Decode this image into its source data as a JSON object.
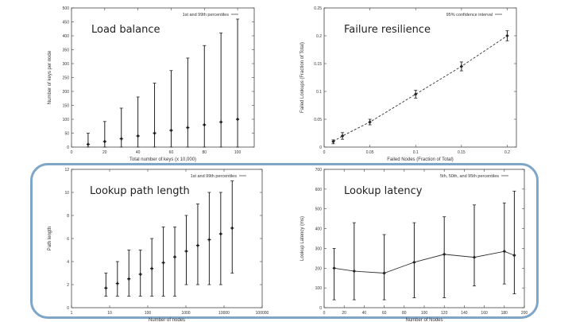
{
  "chart_data": [
    {
      "type": "scatter",
      "title": "Load balance",
      "xlabel": "Total number of keys (x 10,000)",
      "ylabel": "Number of keys per node",
      "legend": "1st and 99th percentiles",
      "legend_position": "top-right",
      "x_ticks": [
        "0",
        "20",
        "40",
        "60",
        "80",
        "100"
      ],
      "y_ticks": [
        "0",
        "50",
        "100",
        "150",
        "200",
        "250",
        "300",
        "350",
        "400",
        "450",
        "500"
      ],
      "xlim": [
        0,
        110
      ],
      "ylim": [
        0,
        500
      ],
      "series": [
        {
          "name": "1st and 99th percentiles",
          "points": [
            {
              "x": 10,
              "y": 10,
              "low": 0,
              "high": 50
            },
            {
              "x": 20,
              "y": 20,
              "low": 0,
              "high": 92
            },
            {
              "x": 30,
              "y": 30,
              "low": 0,
              "high": 140
            },
            {
              "x": 40,
              "y": 40,
              "low": 0,
              "high": 180
            },
            {
              "x": 50,
              "y": 50,
              "low": 0,
              "high": 230
            },
            {
              "x": 60,
              "y": 60,
              "low": 0,
              "high": 275
            },
            {
              "x": 70,
              "y": 70,
              "low": 0,
              "high": 320
            },
            {
              "x": 80,
              "y": 80,
              "low": 0,
              "high": 365
            },
            {
              "x": 90,
              "y": 90,
              "low": 0,
              "high": 410
            },
            {
              "x": 100,
              "y": 100,
              "low": 0,
              "high": 460
            }
          ]
        }
      ]
    },
    {
      "type": "line",
      "title": "Failure resilience",
      "xlabel": "Failed Nodes (Fraction of Total)",
      "ylabel": "Failed Lookups (Fraction of Total)",
      "legend": "95% confidence interval",
      "legend_position": "top-right",
      "x_ticks": [
        "0",
        "0.05",
        "0.1",
        "0.15",
        "0.2"
      ],
      "y_ticks": [
        "0",
        "0.05",
        "0.1",
        "0.15",
        "0.2",
        "0.25"
      ],
      "xlim": [
        0,
        0.21
      ],
      "ylim": [
        0,
        0.25
      ],
      "series": [
        {
          "name": "95% confidence interval",
          "points": [
            {
              "x": 0.01,
              "y": 0.01,
              "low": 0.006,
              "high": 0.013
            },
            {
              "x": 0.02,
              "y": 0.02,
              "low": 0.014,
              "high": 0.026
            },
            {
              "x": 0.05,
              "y": 0.045,
              "low": 0.04,
              "high": 0.05
            },
            {
              "x": 0.1,
              "y": 0.095,
              "low": 0.088,
              "high": 0.102
            },
            {
              "x": 0.15,
              "y": 0.145,
              "low": 0.137,
              "high": 0.153
            },
            {
              "x": 0.2,
              "y": 0.2,
              "low": 0.191,
              "high": 0.209
            }
          ]
        }
      ]
    },
    {
      "type": "scatter",
      "title": "Lookup path length",
      "xlabel": "Number of nodes",
      "ylabel": "Path length",
      "legend": "1st and 99th percentiles",
      "legend_position": "top-right",
      "x_scale": "log",
      "x_ticks": [
        "1",
        "10",
        "100",
        "1000",
        "10000",
        "100000"
      ],
      "y_ticks": [
        "0",
        "2",
        "4",
        "6",
        "8",
        "10",
        "12"
      ],
      "xlim": [
        1,
        100000
      ],
      "ylim": [
        0,
        12
      ],
      "series": [
        {
          "name": "1st and 99th percentiles",
          "points": [
            {
              "x": 8,
              "y": 1.7,
              "low": 1,
              "high": 3
            },
            {
              "x": 16,
              "y": 2.1,
              "low": 1,
              "high": 4
            },
            {
              "x": 32,
              "y": 2.5,
              "low": 1,
              "high": 5
            },
            {
              "x": 64,
              "y": 2.9,
              "low": 1,
              "high": 5
            },
            {
              "x": 128,
              "y": 3.4,
              "low": 1,
              "high": 6
            },
            {
              "x": 256,
              "y": 3.9,
              "low": 1,
              "high": 7
            },
            {
              "x": 512,
              "y": 4.4,
              "low": 1,
              "high": 7
            },
            {
              "x": 1024,
              "y": 4.9,
              "low": 2,
              "high": 8
            },
            {
              "x": 2048,
              "y": 5.4,
              "low": 2,
              "high": 9
            },
            {
              "x": 4096,
              "y": 5.9,
              "low": 2,
              "high": 10
            },
            {
              "x": 8192,
              "y": 6.4,
              "low": 2,
              "high": 10
            },
            {
              "x": 16384,
              "y": 6.9,
              "low": 3,
              "high": 11
            }
          ]
        }
      ]
    },
    {
      "type": "line",
      "title": "Lookup latency",
      "xlabel": "Number of Nodes",
      "ylabel": "Lookup Latency (ms)",
      "legend": "5th, 50th, and 95th percentiles",
      "legend_position": "top-right",
      "x_ticks": [
        "0",
        "20",
        "40",
        "60",
        "80",
        "100",
        "120",
        "140",
        "160",
        "180",
        "200"
      ],
      "y_ticks": [
        "0",
        "100",
        "200",
        "300",
        "400",
        "500",
        "600",
        "700"
      ],
      "xlim": [
        0,
        200
      ],
      "ylim": [
        0,
        700
      ],
      "series": [
        {
          "name": "5th, 50th, and 95th percentiles",
          "points": [
            {
              "x": 10,
              "y": 200,
              "low": 40,
              "high": 300
            },
            {
              "x": 30,
              "y": 185,
              "low": 40,
              "high": 430
            },
            {
              "x": 60,
              "y": 175,
              "low": 40,
              "high": 370
            },
            {
              "x": 90,
              "y": 230,
              "low": 50,
              "high": 430
            },
            {
              "x": 120,
              "y": 270,
              "low": 50,
              "high": 460
            },
            {
              "x": 150,
              "y": 255,
              "low": 110,
              "high": 520
            },
            {
              "x": 180,
              "y": 285,
              "low": 120,
              "high": 530
            },
            {
              "x": 190,
              "y": 265,
              "low": 70,
              "high": 590
            }
          ]
        }
      ]
    }
  ]
}
